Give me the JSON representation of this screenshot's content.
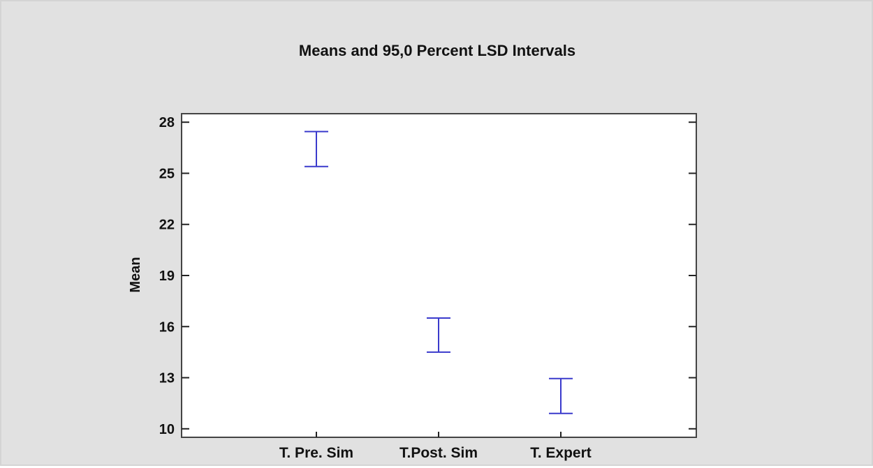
{
  "chart_data": {
    "type": "interval",
    "title": "Means and 95,0 Percent LSD Intervals",
    "ylabel": "Mean",
    "xlabel": "",
    "categories": [
      "T. Pre. Sim",
      "T.Post. Sim",
      "T. Expert"
    ],
    "intervals": [
      {
        "category": "T. Pre. Sim",
        "lower": 25.4,
        "upper": 27.45
      },
      {
        "category": "T.Post. Sim",
        "lower": 14.5,
        "upper": 16.5
      },
      {
        "category": "T. Expert",
        "lower": 10.9,
        "upper": 12.95
      }
    ],
    "ylim": [
      9.5,
      28.5
    ],
    "yticks": [
      10,
      13,
      16,
      19,
      22,
      25,
      28
    ],
    "grid": false,
    "legend": "none",
    "colors": {
      "interval": "#3a3acc",
      "background": "#e1e1e1",
      "plot_area": "#ffffff"
    }
  }
}
